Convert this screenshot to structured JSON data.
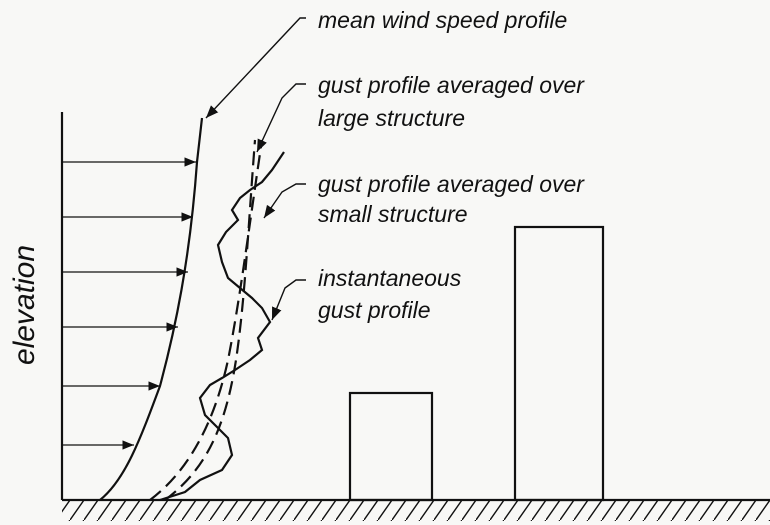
{
  "axis_label": "elevation",
  "labels": [
    {
      "lines": [
        "mean wind speed profile"
      ]
    },
    {
      "lines": [
        "gust profile averaged over",
        "large structure"
      ]
    },
    {
      "lines": [
        "gust profile averaged over",
        "small structure"
      ]
    },
    {
      "lines": [
        "instantaneous",
        "gust profile"
      ]
    }
  ]
}
